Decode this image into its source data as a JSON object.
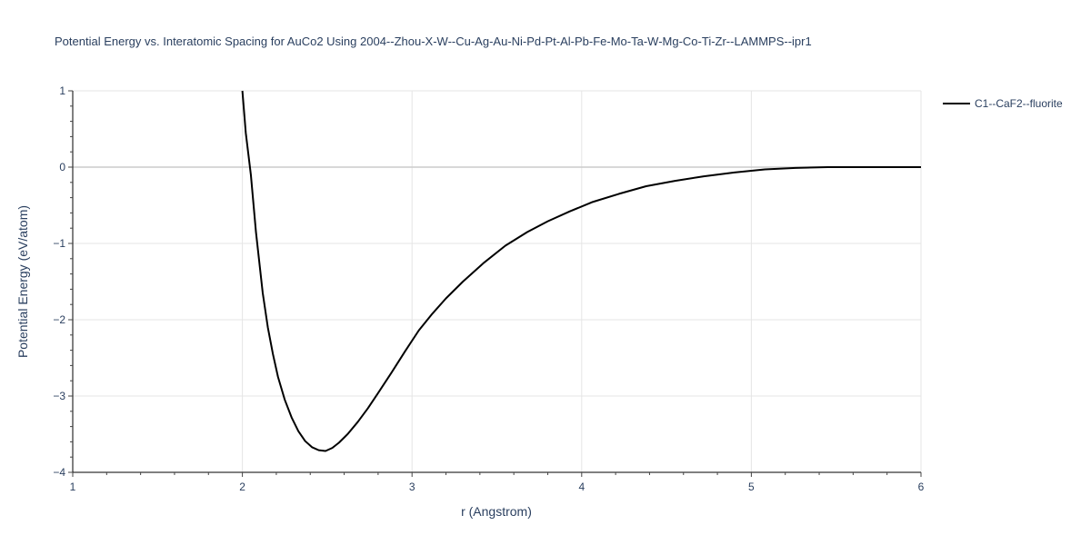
{
  "chart_data": {
    "type": "line",
    "title": "Potential Energy vs. Interatomic Spacing for AuCo2 Using 2004--Zhou-X-W--Cu-Ag-Au-Ni-Pd-Pt-Al-Pb-Fe-Mo-Ta-W-Mg-Co-Ti-Zr--LAMMPS--ipr1",
    "xlabel": "r (Angstrom)",
    "ylabel": "Potential Energy (eV/atom)",
    "xlim": [
      1,
      6
    ],
    "ylim": [
      -4,
      1
    ],
    "xticks": [
      1,
      2,
      3,
      4,
      5,
      6
    ],
    "yticks": [
      1,
      0,
      -1,
      -2,
      -3,
      -4
    ],
    "xtick_labels": [
      "1",
      "2",
      "3",
      "4",
      "5",
      "6"
    ],
    "ytick_labels": [
      "1",
      "0",
      "−1",
      "−2",
      "−3",
      "−4"
    ],
    "grid": true,
    "legend_position": "top-right",
    "series": [
      {
        "name": "C1--CaF2--fluorite",
        "color": "#000000",
        "x": [
          2.0,
          2.02,
          2.05,
          2.08,
          2.12,
          2.15,
          2.18,
          2.21,
          2.25,
          2.29,
          2.33,
          2.37,
          2.41,
          2.45,
          2.49,
          2.53,
          2.57,
          2.62,
          2.68,
          2.74,
          2.8,
          2.88,
          2.96,
          3.04,
          3.12,
          3.2,
          3.3,
          3.42,
          3.55,
          3.68,
          3.8,
          3.93,
          4.06,
          4.22,
          4.38,
          4.55,
          4.72,
          4.9,
          5.08,
          5.26,
          5.45,
          5.6,
          5.8,
          6.0
        ],
        "y": [
          1.0,
          0.45,
          -0.1,
          -0.85,
          -1.65,
          -2.1,
          -2.45,
          -2.75,
          -3.05,
          -3.28,
          -3.46,
          -3.59,
          -3.67,
          -3.71,
          -3.72,
          -3.68,
          -3.61,
          -3.5,
          -3.34,
          -3.16,
          -2.96,
          -2.69,
          -2.41,
          -2.14,
          -1.92,
          -1.72,
          -1.5,
          -1.26,
          -1.03,
          -0.85,
          -0.71,
          -0.58,
          -0.46,
          -0.35,
          -0.25,
          -0.18,
          -0.12,
          -0.07,
          -0.03,
          -0.01,
          0.0,
          0.0,
          0.0,
          0.0
        ]
      }
    ]
  }
}
